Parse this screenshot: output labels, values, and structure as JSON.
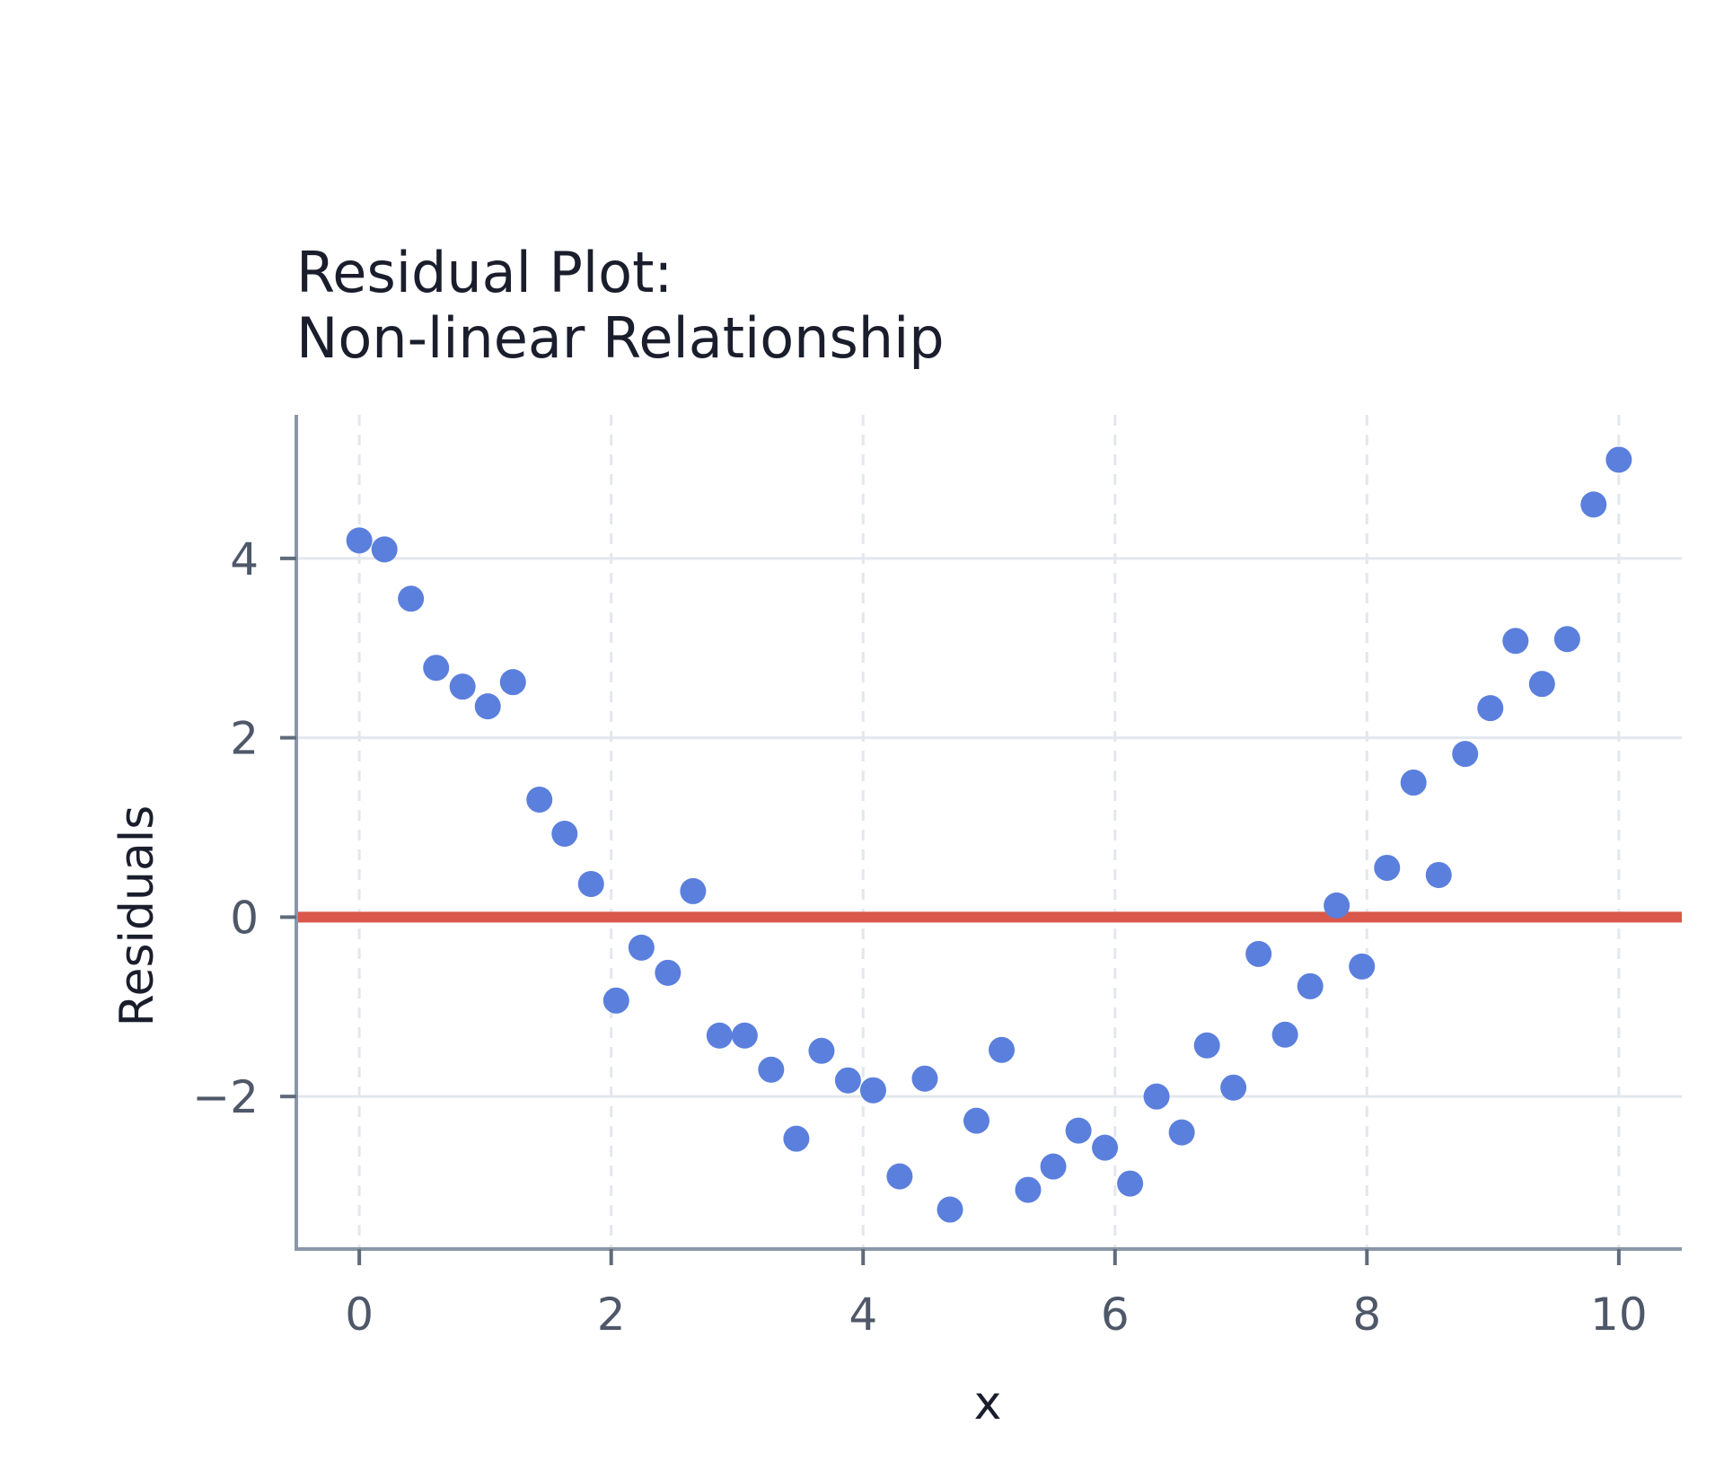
{
  "chart_data": {
    "type": "scatter",
    "title": [
      "Residual Plot:",
      "Non-linear Relationship"
    ],
    "xlabel": "x",
    "ylabel": "Residuals",
    "xlim": [
      -0.5,
      10.5
    ],
    "ylim": [
      -3.7,
      5.6
    ],
    "xticks": [
      0,
      2,
      4,
      6,
      8,
      10
    ],
    "yticks": [
      -2,
      0,
      2,
      4
    ],
    "grid": true,
    "reference_line": {
      "y": 0,
      "color": "#d9584a"
    },
    "series": [
      {
        "color": "#5b7fdc",
        "points": [
          [
            0.0,
            4.2
          ],
          [
            0.2,
            4.1
          ],
          [
            0.41,
            3.55
          ],
          [
            0.61,
            2.78
          ],
          [
            0.82,
            2.57
          ],
          [
            1.02,
            2.35
          ],
          [
            1.22,
            2.62
          ],
          [
            1.43,
            1.31
          ],
          [
            1.63,
            0.93
          ],
          [
            1.84,
            0.37
          ],
          [
            2.04,
            -0.93
          ],
          [
            2.24,
            -0.34
          ],
          [
            2.45,
            -0.62
          ],
          [
            2.65,
            0.29
          ],
          [
            2.86,
            -1.32
          ],
          [
            3.06,
            -1.32
          ],
          [
            3.27,
            -1.7
          ],
          [
            3.47,
            -2.47
          ],
          [
            3.67,
            -1.49
          ],
          [
            3.88,
            -1.82
          ],
          [
            4.08,
            -1.93
          ],
          [
            4.29,
            -2.89
          ],
          [
            4.49,
            -1.8
          ],
          [
            4.69,
            -3.26
          ],
          [
            4.9,
            -2.27
          ],
          [
            5.1,
            -1.48
          ],
          [
            5.31,
            -3.04
          ],
          [
            5.51,
            -2.78
          ],
          [
            5.71,
            -2.38
          ],
          [
            5.92,
            -2.57
          ],
          [
            6.12,
            -2.97
          ],
          [
            6.33,
            -2.0
          ],
          [
            6.53,
            -2.4
          ],
          [
            6.73,
            -1.43
          ],
          [
            6.94,
            -1.9
          ],
          [
            7.14,
            -0.41
          ],
          [
            7.35,
            -1.31
          ],
          [
            7.55,
            -0.77
          ],
          [
            7.76,
            0.13
          ],
          [
            7.96,
            -0.55
          ],
          [
            8.16,
            0.55
          ],
          [
            8.37,
            1.5
          ],
          [
            8.57,
            0.47
          ],
          [
            8.78,
            1.82
          ],
          [
            8.98,
            2.33
          ],
          [
            9.18,
            3.08
          ],
          [
            9.39,
            2.6
          ],
          [
            9.59,
            3.1
          ],
          [
            9.8,
            4.6
          ],
          [
            10.0,
            5.1
          ]
        ]
      }
    ]
  }
}
